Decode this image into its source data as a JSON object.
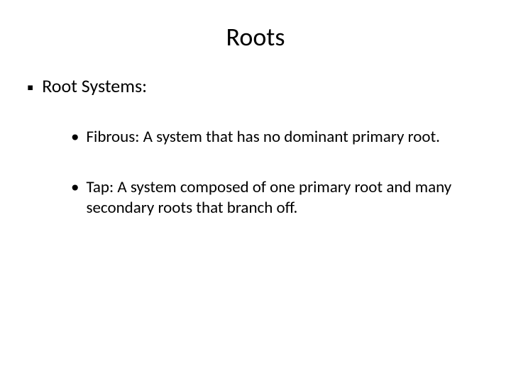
{
  "slide": {
    "title": "Roots",
    "background_color": "#ffffff",
    "text_color": "#000000",
    "title_fontsize": 36,
    "level1_fontsize": 26,
    "level2_fontsize": 23,
    "font_family": "Calibri",
    "bullets": {
      "level1_symbol": "▪",
      "level2_symbol": "•"
    },
    "items": [
      {
        "level": 1,
        "text": "Root Systems:"
      },
      {
        "level": 2,
        "text": "Fibrous:  A system that has no dominant primary root."
      },
      {
        "level": 2,
        "text": "Tap:  A system composed of one primary root and many secondary roots that branch off."
      }
    ]
  }
}
